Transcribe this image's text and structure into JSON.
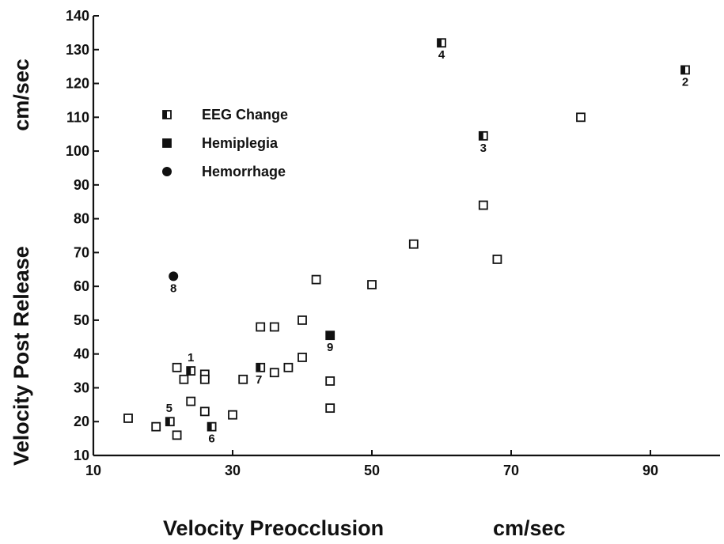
{
  "chart_data": {
    "type": "scatter",
    "title": "",
    "xlabel": "Velocity Preocclusion",
    "xunit": "cm/sec",
    "ylabel": "Velocity Post Release",
    "yunit": "cm/sec",
    "xlim": [
      10,
      100
    ],
    "ylim": [
      10,
      140
    ],
    "xticks": [
      10,
      30,
      50,
      70,
      90
    ],
    "yticks": [
      10,
      20,
      30,
      40,
      50,
      60,
      70,
      80,
      90,
      100,
      110,
      120,
      130,
      140
    ],
    "legend_position": "upper-left",
    "legend": [
      {
        "marker": "half-square",
        "label": "EEG Change"
      },
      {
        "marker": "filled-square",
        "label": "Hemiplegia"
      },
      {
        "marker": "filled-circle",
        "label": "Hemorrhage"
      }
    ],
    "points": [
      {
        "x": 15,
        "y": 21,
        "marker": "open-square"
      },
      {
        "x": 19,
        "y": 18.5,
        "marker": "open-square"
      },
      {
        "x": 22,
        "y": 16,
        "marker": "open-square"
      },
      {
        "x": 22,
        "y": 36,
        "marker": "open-square"
      },
      {
        "x": 23,
        "y": 32.5,
        "marker": "open-square"
      },
      {
        "x": 24,
        "y": 26,
        "marker": "open-square"
      },
      {
        "x": 26,
        "y": 34,
        "marker": "open-square"
      },
      {
        "x": 26,
        "y": 32.5,
        "marker": "open-square"
      },
      {
        "x": 26,
        "y": 23,
        "marker": "open-square"
      },
      {
        "x": 30,
        "y": 22,
        "marker": "open-square"
      },
      {
        "x": 31.5,
        "y": 32.5,
        "marker": "open-square"
      },
      {
        "x": 34,
        "y": 48,
        "marker": "open-square"
      },
      {
        "x": 36,
        "y": 48,
        "marker": "open-square"
      },
      {
        "x": 36,
        "y": 34.5,
        "marker": "open-square"
      },
      {
        "x": 38,
        "y": 36,
        "marker": "open-square"
      },
      {
        "x": 40,
        "y": 39,
        "marker": "open-square"
      },
      {
        "x": 40,
        "y": 50,
        "marker": "open-square"
      },
      {
        "x": 42,
        "y": 62,
        "marker": "open-square"
      },
      {
        "x": 44,
        "y": 32,
        "marker": "open-square"
      },
      {
        "x": 44,
        "y": 24,
        "marker": "open-square"
      },
      {
        "x": 50,
        "y": 60.5,
        "marker": "open-square"
      },
      {
        "x": 56,
        "y": 72.5,
        "marker": "open-square"
      },
      {
        "x": 66,
        "y": 84,
        "marker": "open-square"
      },
      {
        "x": 68,
        "y": 68,
        "marker": "open-square"
      },
      {
        "x": 80,
        "y": 110,
        "marker": "open-square"
      },
      {
        "x": 24,
        "y": 35,
        "marker": "half-square",
        "label": "1"
      },
      {
        "x": 95,
        "y": 124,
        "marker": "half-square",
        "label": "2"
      },
      {
        "x": 66,
        "y": 104.5,
        "marker": "half-square",
        "label": "3"
      },
      {
        "x": 60,
        "y": 132,
        "marker": "half-square",
        "label": "4"
      },
      {
        "x": 21,
        "y": 20,
        "marker": "half-square",
        "label": "5"
      },
      {
        "x": 27,
        "y": 18.5,
        "marker": "half-square",
        "label": "6"
      },
      {
        "x": 34,
        "y": 36,
        "marker": "half-square",
        "label": "7"
      },
      {
        "x": 44,
        "y": 45.5,
        "marker": "filled-square",
        "label": "9"
      },
      {
        "x": 21.5,
        "y": 63,
        "marker": "filled-circle",
        "label": "8"
      }
    ]
  }
}
